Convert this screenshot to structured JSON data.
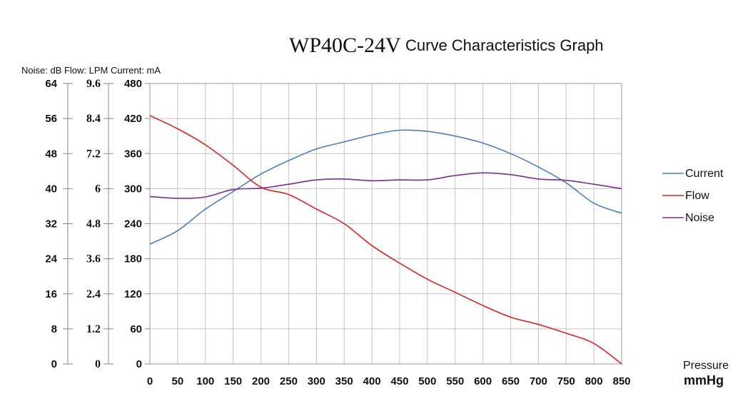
{
  "chart_data": {
    "type": "line",
    "title_model": "WP40C-24V",
    "title": "Curve Characteristics Graph",
    "units_note": "Noise: dB  Flow: LPM  Current: mA",
    "xlabel": "Pressure",
    "xunit": "mmHg",
    "x": [
      0,
      50,
      100,
      150,
      200,
      250,
      300,
      350,
      400,
      450,
      500,
      550,
      600,
      650,
      700,
      750,
      800,
      850
    ],
    "x_ticks": [
      "0",
      "50",
      "100",
      "150",
      "200",
      "250",
      "300",
      "350",
      "400",
      "450",
      "500",
      "550",
      "600",
      "650",
      "700",
      "750",
      "800",
      "850"
    ],
    "xlim": [
      0,
      850
    ],
    "grid": true,
    "legend_position": "right",
    "axes": {
      "noise": {
        "label": "Noise: dB",
        "ticks": [
          "0",
          "8",
          "16",
          "24",
          "32",
          "40",
          "48",
          "56",
          "64"
        ],
        "range": [
          0,
          64
        ]
      },
      "flow": {
        "label": "Flow: LPM",
        "ticks": [
          "0",
          "1.2",
          "2.4",
          "3.6",
          "4.8",
          "6",
          "7.2",
          "8.4",
          "9.6"
        ],
        "range": [
          0,
          9.6
        ]
      },
      "current": {
        "label": "Current: mA",
        "ticks": [
          "0",
          "60",
          "120",
          "180",
          "240",
          "300",
          "360",
          "420",
          "480"
        ],
        "range": [
          0,
          480
        ]
      }
    },
    "series": [
      {
        "name": "Current",
        "axis": "current",
        "color": "#4a7ebb",
        "values": [
          205,
          228,
          265,
          295,
          325,
          348,
          368,
          380,
          392,
          400,
          398,
          390,
          378,
          360,
          337,
          310,
          275,
          258
        ]
      },
      {
        "name": "Flow",
        "axis": "flow",
        "color": "#e02020",
        "values": [
          8.5,
          8.05,
          7.5,
          6.8,
          6.05,
          5.8,
          5.3,
          4.8,
          4.05,
          3.45,
          2.9,
          2.45,
          2.0,
          1.6,
          1.35,
          1.05,
          0.7,
          0.0
        ]
      },
      {
        "name": "Noise",
        "axis": "noise",
        "color": "#7b2d8e",
        "values": [
          38.2,
          37.8,
          38.1,
          39.8,
          40.1,
          41.0,
          42.0,
          42.2,
          41.8,
          42.0,
          42.0,
          43.0,
          43.6,
          43.2,
          42.2,
          41.9,
          41.0,
          40.0
        ]
      }
    ]
  }
}
